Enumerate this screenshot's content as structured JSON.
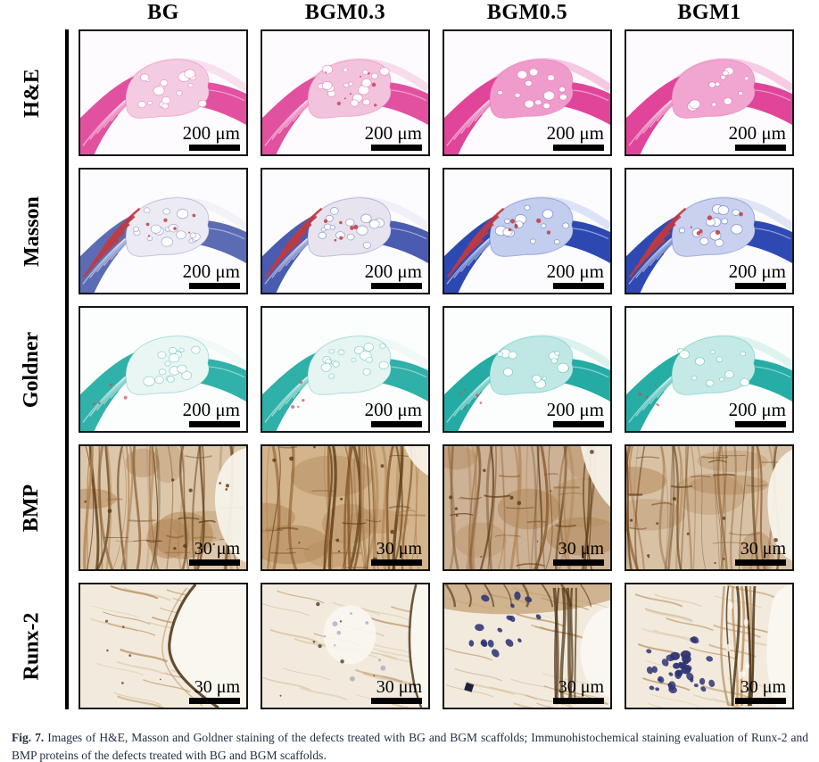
{
  "figure": {
    "title_columns": [
      "BG",
      "BGM0.3",
      "BGM0.5",
      "BGM1"
    ],
    "rows": [
      {
        "label": "H&E",
        "stain": "he",
        "scale": "200 μm"
      },
      {
        "label": "Masson",
        "stain": "masson",
        "scale": "200 μm"
      },
      {
        "label": "Goldner",
        "stain": "goldner",
        "scale": "200 μm"
      },
      {
        "label": "BMP",
        "stain": "bmp",
        "scale": "30 μm"
      },
      {
        "label": "Runx-2",
        "stain": "runx2",
        "scale": "30 μm"
      }
    ],
    "caption": {
      "label": "Fig. 7.",
      "text": "Images of H&E, Masson and Goldner staining of the defects treated with BG and BGM scaffolds; Immunohistochemical staining evaluation of Runx-2 and BMP proteins of the defects treated with BG and BGM scaffolds."
    },
    "palette": {
      "he": {
        "bg": "#fdfbfd",
        "band": [
          "#e2519f",
          "#e2519f",
          "#e0459a",
          "#e0459a"
        ],
        "blob": [
          "#f4cce2",
          "#f2c3dc",
          "#ef9ccc",
          "#f0a6d0"
        ],
        "accent": "#cc3b55"
      },
      "masson": {
        "bg": "#fcfcfe",
        "band": [
          "#5b6cb4",
          "#4a5cb0",
          "#2c49b2",
          "#2e4ab2"
        ],
        "blob": [
          "#eceaf3",
          "#e7e4f0",
          "#c3cdee",
          "#c9d1ee"
        ],
        "accent": "#c13a3e"
      },
      "goldner": {
        "bg": "#fcfefd",
        "band": [
          "#30b2aa",
          "#2fb0a8",
          "#23aba4",
          "#26ada6"
        ],
        "blob": [
          "#e9f6f4",
          "#e6f4f2",
          "#bfe8e4",
          "#c5eae6"
        ],
        "accent": "#c25050"
      },
      "bmp": {
        "bg": [
          "#dcc7ab",
          "#d3b48c",
          "#cdb296",
          "#d8c2a6"
        ],
        "dark": "#5d3a14",
        "mid": "#8a5a2b",
        "light": "#b08354",
        "white": "#f7f3ea"
      },
      "runx2": {
        "bg": "#f2ebdd",
        "dark": "#4a2f10",
        "mid": "#b98f5e",
        "light": "#d9c3a2",
        "white": "#faf7f1",
        "nuclei": "#2e3474",
        "faint_nuclei": "#8f86b8"
      }
    }
  }
}
